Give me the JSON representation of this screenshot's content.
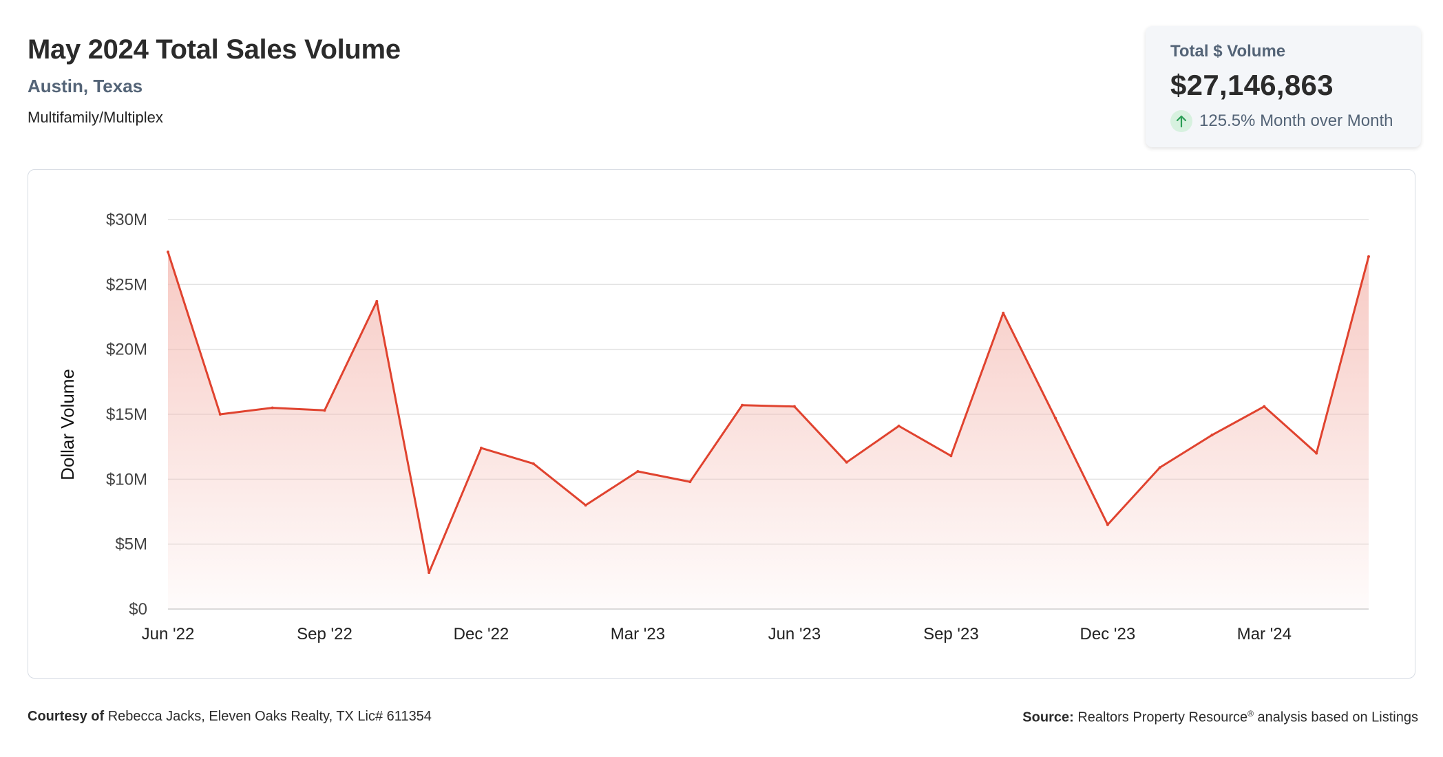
{
  "header": {
    "title": "May 2024 Total Sales Volume",
    "location": "Austin, Texas",
    "property_type": "Multifamily/Multiplex"
  },
  "kpi": {
    "label": "Total $ Volume",
    "value": "$27,146,863",
    "change": "125.5% Month over Month",
    "change_direction": "up",
    "icon": "arrow-up-icon"
  },
  "footer": {
    "courtesy_label": "Courtesy of",
    "courtesy_text": "Rebecca Jacks, Eleven Oaks Realty, TX Lic# 611354",
    "source_label": "Source:",
    "source_text_before": "Realtors Property Resource",
    "source_sup": "®",
    "source_text_after": " analysis based on Listings"
  },
  "colors": {
    "line": "#e0432f",
    "fill": "#f4b8b0",
    "grid": "#e3e3e3",
    "subtitle": "#546477",
    "kpi_bg": "#f4f6f9",
    "up_icon": "#2a9d55"
  },
  "chart_data": {
    "type": "area",
    "ylabel": "Dollar Volume",
    "xlabel": "",
    "ylim": [
      0,
      30000000
    ],
    "y_ticks": [
      {
        "value": 0,
        "label": "$0"
      },
      {
        "value": 5000000,
        "label": "$5M"
      },
      {
        "value": 10000000,
        "label": "$10M"
      },
      {
        "value": 15000000,
        "label": "$15M"
      },
      {
        "value": 20000000,
        "label": "$20M"
      },
      {
        "value": 25000000,
        "label": "$25M"
      },
      {
        "value": 30000000,
        "label": "$30M"
      }
    ],
    "x_ticks": [
      "Jun '22",
      "Sep '22",
      "Dec '22",
      "Mar '23",
      "Jun '23",
      "Sep '23",
      "Dec '23",
      "Mar '24"
    ],
    "x": [
      "Jun 2022",
      "Jul 2022",
      "Aug 2022",
      "Sep 2022",
      "Oct 2022",
      "Nov 2022",
      "Dec 2022",
      "Jan 2023",
      "Feb 2023",
      "Mar 2023",
      "Apr 2023",
      "May 2023",
      "Jun 2023",
      "Jul 2023",
      "Aug 2023",
      "Sep 2023",
      "Oct 2023",
      "Nov 2023",
      "Dec 2023",
      "Jan 2024",
      "Feb 2024",
      "Mar 2024",
      "Apr 2024",
      "May 2024"
    ],
    "values": [
      27500000,
      15000000,
      15500000,
      15300000,
      23700000,
      2800000,
      12400000,
      11200000,
      8000000,
      10600000,
      9800000,
      15700000,
      15600000,
      11300000,
      14100000,
      11800000,
      22800000,
      14700000,
      6500000,
      10900000,
      13400000,
      15600000,
      12000000,
      27146863
    ],
    "grid": true,
    "legend": "none"
  }
}
